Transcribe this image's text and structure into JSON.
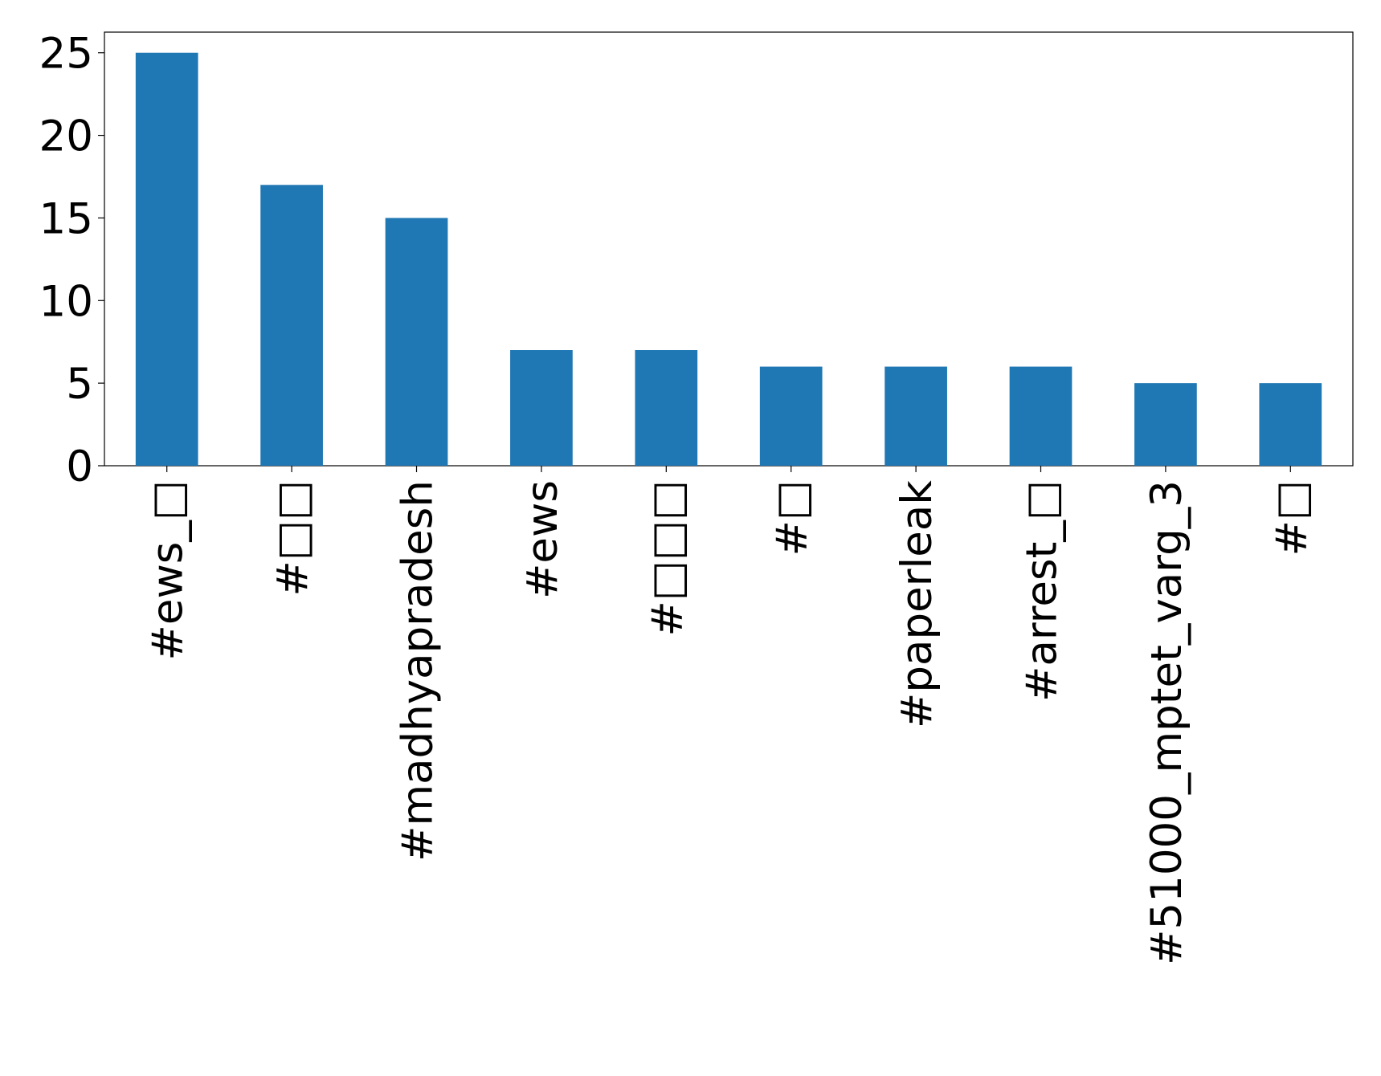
{
  "chart_data": {
    "type": "bar",
    "categories": [
      "#ews_□",
      "#□□",
      "#madhyapradesh",
      "#ews",
      "#□□□",
      "#□",
      "#paperleak",
      "#arrest_□",
      "#51000_mptet_varg_3",
      "#□"
    ],
    "values": [
      25,
      17,
      15,
      7,
      7,
      6,
      6,
      6,
      5,
      5
    ],
    "color": "#1f77b4",
    "ylim": [
      0,
      26.25
    ],
    "yticks": [
      0,
      5,
      10,
      15,
      20,
      25
    ],
    "grid": false
  }
}
